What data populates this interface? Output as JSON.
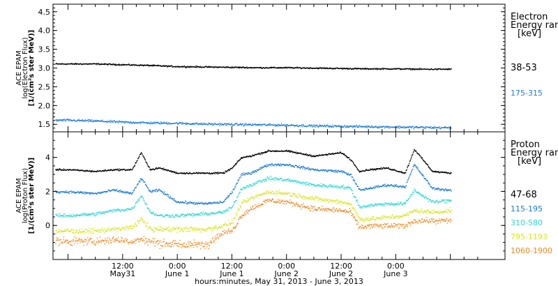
{
  "chart_data": [
    {
      "type": "scatter",
      "panel": "electron",
      "ylabel": [
        "ACE EPAM",
        "log(Electron Flux)",
        "[1/(cm²s ster MeV)]"
      ],
      "ylim": [
        1.3,
        4.7
      ],
      "yticks": [
        "1.5",
        "2.0",
        "2.5",
        "3.0",
        "3.5",
        "4.0",
        "4.5"
      ],
      "legend_title": [
        "Electron",
        "Energy ran",
        "[keV]"
      ],
      "series": [
        {
          "name": "38-53",
          "color": "#000000",
          "x_hours": [
            0,
            6,
            12,
            18,
            24,
            30,
            36,
            42,
            48,
            54,
            60,
            66,
            72,
            78,
            84
          ],
          "values": [
            3.12,
            3.12,
            3.1,
            3.08,
            3.05,
            3.04,
            3.03,
            3.02,
            3.02,
            3.01,
            3.0,
            2.99,
            2.99,
            2.98,
            2.98
          ]
        },
        {
          "name": "175-315",
          "color": "#1f7fd6",
          "x_hours": [
            0,
            6,
            12,
            18,
            24,
            30,
            36,
            42,
            48,
            54,
            60,
            66,
            72,
            78,
            84
          ],
          "values": [
            1.62,
            1.6,
            1.57,
            1.55,
            1.54,
            1.52,
            1.51,
            1.5,
            1.49,
            1.47,
            1.46,
            1.45,
            1.44,
            1.43,
            1.42
          ]
        }
      ]
    },
    {
      "type": "scatter",
      "panel": "proton",
      "ylabel": [
        "ACE EPAM",
        "log(Proton Flux)",
        "[1/(cm²s ster MeV)]"
      ],
      "ylim": [
        -2.0,
        5.5
      ],
      "yticks": [
        "0",
        "2",
        "4"
      ],
      "legend_title": [
        "Proton",
        "Energy ran",
        "[keV]"
      ],
      "series": [
        {
          "name": "47-68",
          "color": "#000000",
          "x_hours": [
            0,
            6,
            10,
            14,
            16,
            18,
            20,
            24,
            30,
            34,
            36,
            38,
            40,
            44,
            48,
            54,
            60,
            62,
            64,
            66,
            70,
            74,
            76,
            80,
            84
          ],
          "values": [
            3.3,
            3.2,
            3.3,
            3.3,
            4.3,
            3.3,
            3.4,
            3.1,
            3.1,
            3.1,
            3.4,
            4.0,
            4.1,
            4.4,
            4.4,
            4.1,
            4.3,
            3.9,
            3.2,
            3.3,
            3.4,
            3.1,
            4.5,
            3.2,
            3.1
          ]
        },
        {
          "name": "115-195",
          "color": "#1a7ad0",
          "x_hours": [
            0,
            6,
            10,
            14,
            16,
            18,
            20,
            24,
            30,
            34,
            36,
            38,
            40,
            44,
            48,
            54,
            60,
            62,
            64,
            66,
            70,
            74,
            76,
            80,
            84
          ],
          "values": [
            2.0,
            1.9,
            2.1,
            1.9,
            2.8,
            2.0,
            2.1,
            1.4,
            1.3,
            1.4,
            2.0,
            3.0,
            3.1,
            3.6,
            3.6,
            3.3,
            3.2,
            3.0,
            2.1,
            2.2,
            2.4,
            2.3,
            3.6,
            2.2,
            2.1
          ]
        },
        {
          "name": "310-580",
          "color": "#2fd6d2",
          "x_hours": [
            0,
            6,
            10,
            14,
            16,
            18,
            20,
            24,
            30,
            34,
            36,
            38,
            40,
            44,
            48,
            54,
            60,
            62,
            64,
            66,
            70,
            74,
            76,
            80,
            84
          ],
          "values": [
            0.6,
            0.7,
            0.9,
            1.0,
            1.8,
            0.8,
            0.6,
            0.6,
            0.7,
            0.8,
            1.1,
            2.2,
            2.4,
            2.8,
            2.7,
            2.4,
            2.3,
            2.2,
            1.1,
            1.2,
            1.3,
            1.3,
            2.1,
            1.4,
            1.5
          ]
        },
        {
          "name": "795-1193",
          "color": "#d7e51a",
          "x_hours": [
            0,
            6,
            10,
            14,
            16,
            18,
            20,
            24,
            30,
            34,
            36,
            38,
            40,
            44,
            48,
            54,
            60,
            62,
            64,
            66,
            70,
            74,
            76,
            80,
            84
          ],
          "values": [
            -0.3,
            -0.3,
            -0.2,
            -0.1,
            0.4,
            -0.2,
            -0.2,
            -0.2,
            -0.2,
            0.0,
            0.2,
            1.3,
            1.6,
            2.0,
            1.9,
            1.6,
            1.4,
            1.3,
            0.4,
            0.4,
            0.5,
            0.6,
            0.9,
            0.8,
            0.9
          ]
        },
        {
          "name": "1060-1900",
          "color": "#f0891e",
          "x_hours": [
            0,
            6,
            10,
            14,
            16,
            18,
            20,
            24,
            30,
            34,
            36,
            38,
            40,
            44,
            48,
            54,
            60,
            62,
            64,
            66,
            70,
            74,
            76,
            80,
            84
          ],
          "values": [
            -0.9,
            -0.9,
            -0.8,
            -0.9,
            -0.8,
            -0.9,
            -1.0,
            -1.1,
            -1.1,
            -0.4,
            -0.3,
            0.6,
            1.0,
            1.5,
            1.4,
            1.0,
            0.9,
            0.8,
            -0.1,
            0.0,
            0.0,
            0.0,
            0.3,
            0.3,
            0.3
          ]
        }
      ]
    }
  ],
  "x_axis": {
    "tick_labels": [
      {
        "hour": 12,
        "time": "12:00",
        "day": "May31"
      },
      {
        "hour": 24,
        "time": "0:00",
        "day": "June 1"
      },
      {
        "hour": 36,
        "time": "12:00",
        "day": "June 1"
      },
      {
        "hour": 48,
        "time": "0:00",
        "day": "June 2"
      },
      {
        "hour": 60,
        "time": "12:00",
        "day": "June 2"
      },
      {
        "hour": 72,
        "time": "0:00",
        "day": "June 3"
      }
    ],
    "label": "hours:minutes, May 31, 2013 - June  3, 2013"
  }
}
